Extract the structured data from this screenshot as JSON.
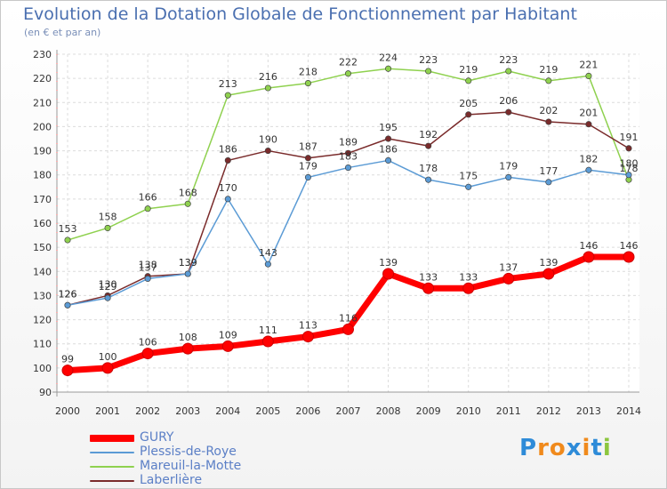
{
  "header": {
    "title": "Evolution de la Dotation Globale de Fonctionnement par Habitant",
    "subtitle": "(en € et par an)"
  },
  "chart_data": {
    "type": "line",
    "title": "Evolution de la Dotation Globale de Fonctionnement par Habitant",
    "subtitle": "(en € et par an)",
    "xlabel": "",
    "ylabel": "",
    "ylim": [
      90,
      230
    ],
    "yticks": [
      90,
      100,
      110,
      120,
      130,
      140,
      150,
      160,
      170,
      180,
      190,
      200,
      210,
      220,
      230
    ],
    "grid": true,
    "legend_position": "bottom-left",
    "categories": [
      "2000",
      "2001",
      "2002",
      "2003",
      "2004",
      "2005",
      "2006",
      "2007",
      "2008",
      "2009",
      "2010",
      "2011",
      "2012",
      "2013",
      "2014"
    ],
    "series": [
      {
        "name": "GURY",
        "color": "#ff0000",
        "values": [
          99,
          100,
          106,
          108,
          109,
          111,
          113,
          116,
          139,
          133,
          133,
          137,
          139,
          146,
          146
        ],
        "labels": [
          "99",
          "100",
          "106",
          "108",
          "109",
          "111",
          "113",
          "116",
          "139",
          "133",
          "133",
          "137",
          "139",
          "146",
          "146"
        ]
      },
      {
        "name": "Plessis-de-Roye",
        "color": "#5b9bd5",
        "values": [
          126,
          129,
          137,
          139,
          170,
          143,
          179,
          183,
          186,
          178,
          175,
          179,
          177,
          182,
          180
        ],
        "labels": [
          "126",
          "129",
          "137",
          "139",
          "170",
          "143",
          "179",
          "183",
          "186",
          "178",
          "175",
          "179",
          "177",
          "182",
          "180"
        ]
      },
      {
        "name": "Mareuil-la-Motte",
        "color": "#8fd14f",
        "values": [
          153,
          158,
          166,
          168,
          213,
          216,
          218,
          222,
          224,
          223,
          219,
          223,
          219,
          221,
          178
        ],
        "labels": [
          "153",
          "158",
          "166",
          "168",
          "213",
          "216",
          "218",
          "222",
          "224",
          "223",
          "219",
          "223",
          "219",
          "221",
          "178"
        ]
      },
      {
        "name": "Laberlière",
        "color": "#7a2b2b",
        "values": [
          126,
          130,
          138,
          139,
          186,
          190,
          187,
          189,
          195,
          192,
          205,
          206,
          202,
          201,
          191
        ],
        "labels": [
          "126",
          "130",
          "138",
          "139",
          "186",
          "190",
          "187",
          "189",
          "195",
          "192",
          "205",
          "206",
          "202",
          "201",
          "191"
        ]
      }
    ]
  },
  "logo": {
    "text": "Proxiti",
    "letters": [
      "P",
      "r",
      "o",
      "x",
      "i",
      "t",
      "i"
    ],
    "colors": [
      "#2e8bd8",
      "#f08a1c",
      "#f08a1c",
      "#2e8bd8",
      "#f08a1c",
      "#2e8bd8",
      "#8cc63f"
    ]
  }
}
